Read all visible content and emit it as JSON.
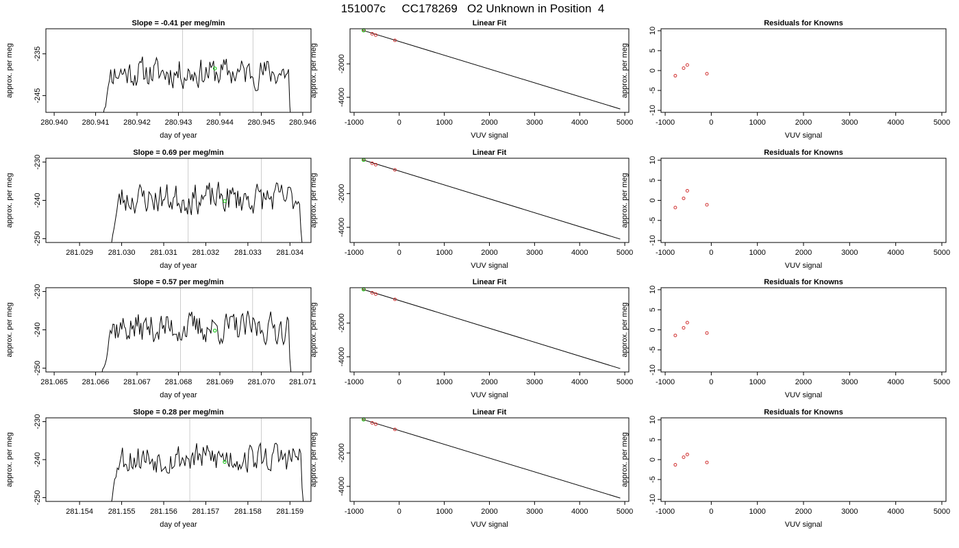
{
  "main_title": "151007c     CC178269   O2 Unknown in Position  4",
  "colors": {
    "series_line": "#000000",
    "marker_green": "#22cc22",
    "marker_red": "#d03030",
    "guide_gray": "#cccccc"
  },
  "chart_data": [
    {
      "type": "line",
      "title": "Slope =  -0.41  per meg/min",
      "xlabel": "day of year",
      "ylabel": "approx. per meg",
      "xlim": [
        280.9398,
        280.9462
      ],
      "ylim": [
        -249,
        -229
      ],
      "xticks": [
        280.94,
        280.941,
        280.942,
        280.943,
        280.944,
        280.945,
        280.946
      ],
      "xtick_labels": [
        "280.940",
        "280.941",
        "280.942",
        "280.943",
        "280.944",
        "280.945",
        "280.946"
      ],
      "yticks": [
        -235,
        -245
      ],
      "ytick_labels": [
        "-235",
        "-245"
      ],
      "vlines": [
        280.9431,
        280.9448
      ],
      "x_start": 280.94115,
      "x_end": 280.94575,
      "y_base": -239.5,
      "y_amp": 4,
      "y_edge": -250,
      "seed": 11,
      "green_point": [
        280.94388,
        -238.5
      ]
    },
    {
      "type": "line",
      "title": "Slope =  0.69  per meg/min",
      "xlabel": "day of year",
      "ylabel": "approx. per meg",
      "xlim": [
        281.0282,
        281.0345
      ],
      "ylim": [
        -251,
        -229
      ],
      "xticks": [
        281.029,
        281.03,
        281.031,
        281.032,
        281.033,
        281.034
      ],
      "xtick_labels": [
        "281.029",
        "281.030",
        "281.031",
        "281.032",
        "281.033",
        "281.034"
      ],
      "yticks": [
        -230,
        -240,
        -250
      ],
      "ytick_labels": [
        "-230",
        "-240",
        "-250"
      ],
      "vlines": [
        281.03158,
        281.03332
      ],
      "x_start": 281.02973,
      "x_end": 281.03432,
      "y_base": -239.5,
      "y_amp": 4.5,
      "y_edge": -252,
      "seed": 23,
      "green_point": [
        281.03245,
        -240.2
      ]
    },
    {
      "type": "line",
      "title": "Slope =  0.57  per meg/min",
      "xlabel": "day of year",
      "ylabel": "approx. per meg",
      "xlim": [
        281.0648,
        281.0712
      ],
      "ylim": [
        -251,
        -229
      ],
      "xticks": [
        281.065,
        281.066,
        281.067,
        281.068,
        281.069,
        281.07,
        281.071
      ],
      "xtick_labels": [
        "281.065",
        "281.066",
        "281.067",
        "281.068",
        "281.069",
        "281.070",
        "281.071"
      ],
      "yticks": [
        -230,
        -240,
        -250
      ],
      "ytick_labels": [
        "-230",
        "-240",
        "-250"
      ],
      "vlines": [
        281.06805,
        281.06979
      ],
      "x_start": 281.06614,
      "x_end": 281.07075,
      "y_base": -239.5,
      "y_amp": 4.5,
      "y_edge": -252,
      "seed": 37,
      "green_point": [
        281.06888,
        -240.2
      ]
    },
    {
      "type": "line",
      "title": "Slope =  0.28  per meg/min",
      "xlabel": "day of year",
      "ylabel": "approx. per meg",
      "xlim": [
        281.1532,
        281.1595
      ],
      "ylim": [
        -251,
        -229
      ],
      "xticks": [
        281.154,
        281.155,
        281.156,
        281.157,
        281.158,
        281.159
      ],
      "xtick_labels": [
        "281.154",
        "281.155",
        "281.156",
        "281.157",
        "281.158",
        "281.159"
      ],
      "yticks": [
        -230,
        -240,
        -250
      ],
      "ytick_labels": [
        "-230",
        "-240",
        "-250"
      ],
      "vlines": [
        281.15662,
        281.15832
      ],
      "x_start": 281.15471,
      "x_end": 281.15935,
      "y_base": -239.5,
      "y_amp": 4.5,
      "y_edge": -252,
      "seed": 53,
      "green_point": [
        281.15745,
        -240.6
      ]
    },
    {
      "type": "scatter",
      "title": "Linear Fit",
      "xlabel": "VUV signal",
      "ylabel": "approx. per meg",
      "xlim": [
        -1090,
        5090
      ],
      "ylim": [
        -4900,
        100
      ],
      "xticks": [
        -1000,
        0,
        1000,
        2000,
        3000,
        4000,
        5000
      ],
      "xtick_labels": [
        "-1000",
        "0",
        "1000",
        "2000",
        "3000",
        "4000",
        "5000"
      ],
      "yticks": [
        -2000,
        -4000
      ],
      "ytick_labels": [
        "-2000",
        "-4000"
      ],
      "fit_line": [
        [
          -800,
          0
        ],
        [
          4900,
          -4700
        ]
      ],
      "red_points": [
        [
          -780,
          0
        ],
        [
          -600,
          -200
        ],
        [
          -520,
          -280
        ],
        [
          -95,
          -590
        ]
      ],
      "green_points": [
        [
          -790,
          0
        ]
      ]
    },
    {
      "type": "scatter",
      "title": "Residuals for Knowns",
      "xlabel": "VUV signal",
      "ylabel": "approx. per meg",
      "xlim": [
        -1090,
        5090
      ],
      "ylim": [
        -10.5,
        10.5
      ],
      "xticks": [
        -1000,
        0,
        1000,
        2000,
        3000,
        4000,
        5000
      ],
      "xtick_labels": [
        "-1000",
        "0",
        "1000",
        "2000",
        "3000",
        "4000",
        "5000"
      ],
      "yticks": [
        10,
        5,
        0,
        -5,
        -10
      ],
      "ytick_labels": [
        "10",
        "5",
        "0",
        "-5",
        "-10"
      ],
      "red_points": [
        [
          -780,
          -1.3
        ],
        [
          -600,
          0.6
        ],
        [
          -520,
          1.4
        ],
        [
          -95,
          -0.8
        ]
      ]
    },
    {
      "type": "scatter",
      "title": "Linear Fit",
      "xlabel": "VUV signal",
      "ylabel": "approx. per meg",
      "xlim": [
        -1090,
        5090
      ],
      "ylim": [
        -4900,
        100
      ],
      "xticks": [
        -1000,
        0,
        1000,
        2000,
        3000,
        4000,
        5000
      ],
      "xtick_labels": [
        "-1000",
        "0",
        "1000",
        "2000",
        "3000",
        "4000",
        "5000"
      ],
      "yticks": [
        -2000,
        -4000
      ],
      "ytick_labels": [
        "-2000",
        "-4000"
      ],
      "fit_line": [
        [
          -800,
          0
        ],
        [
          4900,
          -4700
        ]
      ],
      "red_points": [
        [
          -780,
          0
        ],
        [
          -600,
          -200
        ],
        [
          -520,
          -280
        ],
        [
          -95,
          -590
        ]
      ],
      "green_points": [
        [
          -790,
          0
        ]
      ]
    },
    {
      "type": "scatter",
      "title": "Residuals for Knowns",
      "xlabel": "VUV signal",
      "ylabel": "approx. per meg",
      "xlim": [
        -1090,
        5090
      ],
      "ylim": [
        -10.5,
        10.5
      ],
      "xticks": [
        -1000,
        0,
        1000,
        2000,
        3000,
        4000,
        5000
      ],
      "xtick_labels": [
        "-1000",
        "0",
        "1000",
        "2000",
        "3000",
        "4000",
        "5000"
      ],
      "yticks": [
        10,
        5,
        0,
        -5,
        -10
      ],
      "ytick_labels": [
        "10",
        "5",
        "0",
        "-5",
        "-10"
      ],
      "red_points": [
        [
          -780,
          -1.8
        ],
        [
          -600,
          0.5
        ],
        [
          -520,
          2.4
        ],
        [
          -95,
          -1.1
        ]
      ]
    },
    {
      "type": "scatter",
      "title": "Linear Fit",
      "xlabel": "VUV signal",
      "ylabel": "approx. per meg",
      "xlim": [
        -1090,
        5090
      ],
      "ylim": [
        -4900,
        100
      ],
      "xticks": [
        -1000,
        0,
        1000,
        2000,
        3000,
        4000,
        5000
      ],
      "xtick_labels": [
        "-1000",
        "0",
        "1000",
        "2000",
        "3000",
        "4000",
        "5000"
      ],
      "yticks": [
        -2000,
        -4000
      ],
      "ytick_labels": [
        "-2000",
        "-4000"
      ],
      "fit_line": [
        [
          -800,
          0
        ],
        [
          4900,
          -4700
        ]
      ],
      "red_points": [
        [
          -780,
          0
        ],
        [
          -600,
          -200
        ],
        [
          -520,
          -280
        ],
        [
          -95,
          -590
        ]
      ],
      "green_points": [
        [
          -790,
          0
        ]
      ]
    },
    {
      "type": "scatter",
      "title": "Residuals for Knowns",
      "xlabel": "VUV signal",
      "ylabel": "approx. per meg",
      "xlim": [
        -1090,
        5090
      ],
      "ylim": [
        -10.5,
        10.5
      ],
      "xticks": [
        -1000,
        0,
        1000,
        2000,
        3000,
        4000,
        5000
      ],
      "xtick_labels": [
        "-1000",
        "0",
        "1000",
        "2000",
        "3000",
        "4000",
        "5000"
      ],
      "yticks": [
        10,
        5,
        0,
        -5,
        -10
      ],
      "ytick_labels": [
        "10",
        "5",
        "0",
        "-5",
        "-10"
      ],
      "red_points": [
        [
          -780,
          -1.4
        ],
        [
          -600,
          0.5
        ],
        [
          -520,
          1.8
        ],
        [
          -95,
          -0.8
        ]
      ]
    },
    {
      "type": "scatter",
      "title": "Linear Fit",
      "xlabel": "VUV signal",
      "ylabel": "approx. per meg",
      "xlim": [
        -1090,
        5090
      ],
      "ylim": [
        -4900,
        100
      ],
      "xticks": [
        -1000,
        0,
        1000,
        2000,
        3000,
        4000,
        5000
      ],
      "xtick_labels": [
        "-1000",
        "0",
        "1000",
        "2000",
        "3000",
        "4000",
        "5000"
      ],
      "yticks": [
        -2000,
        -4000
      ],
      "ytick_labels": [
        "-2000",
        "-4000"
      ],
      "fit_line": [
        [
          -800,
          0
        ],
        [
          4900,
          -4700
        ]
      ],
      "red_points": [
        [
          -780,
          0
        ],
        [
          -600,
          -200
        ],
        [
          -520,
          -280
        ],
        [
          -95,
          -590
        ]
      ],
      "green_points": [
        [
          -790,
          0
        ]
      ]
    },
    {
      "type": "scatter",
      "title": "Residuals for Knowns",
      "xlabel": "VUV signal",
      "ylabel": "approx. per meg",
      "xlim": [
        -1090,
        5090
      ],
      "ylim": [
        -10.5,
        10.5
      ],
      "xticks": [
        -1000,
        0,
        1000,
        2000,
        3000,
        4000,
        5000
      ],
      "xtick_labels": [
        "-1000",
        "0",
        "1000",
        "2000",
        "3000",
        "4000",
        "5000"
      ],
      "yticks": [
        10,
        5,
        0,
        -5,
        -10
      ],
      "ytick_labels": [
        "10",
        "5",
        "0",
        "-5",
        "-10"
      ],
      "red_points": [
        [
          -780,
          -1.3
        ],
        [
          -600,
          0.6
        ],
        [
          -520,
          1.3
        ],
        [
          -95,
          -0.7
        ]
      ]
    }
  ]
}
